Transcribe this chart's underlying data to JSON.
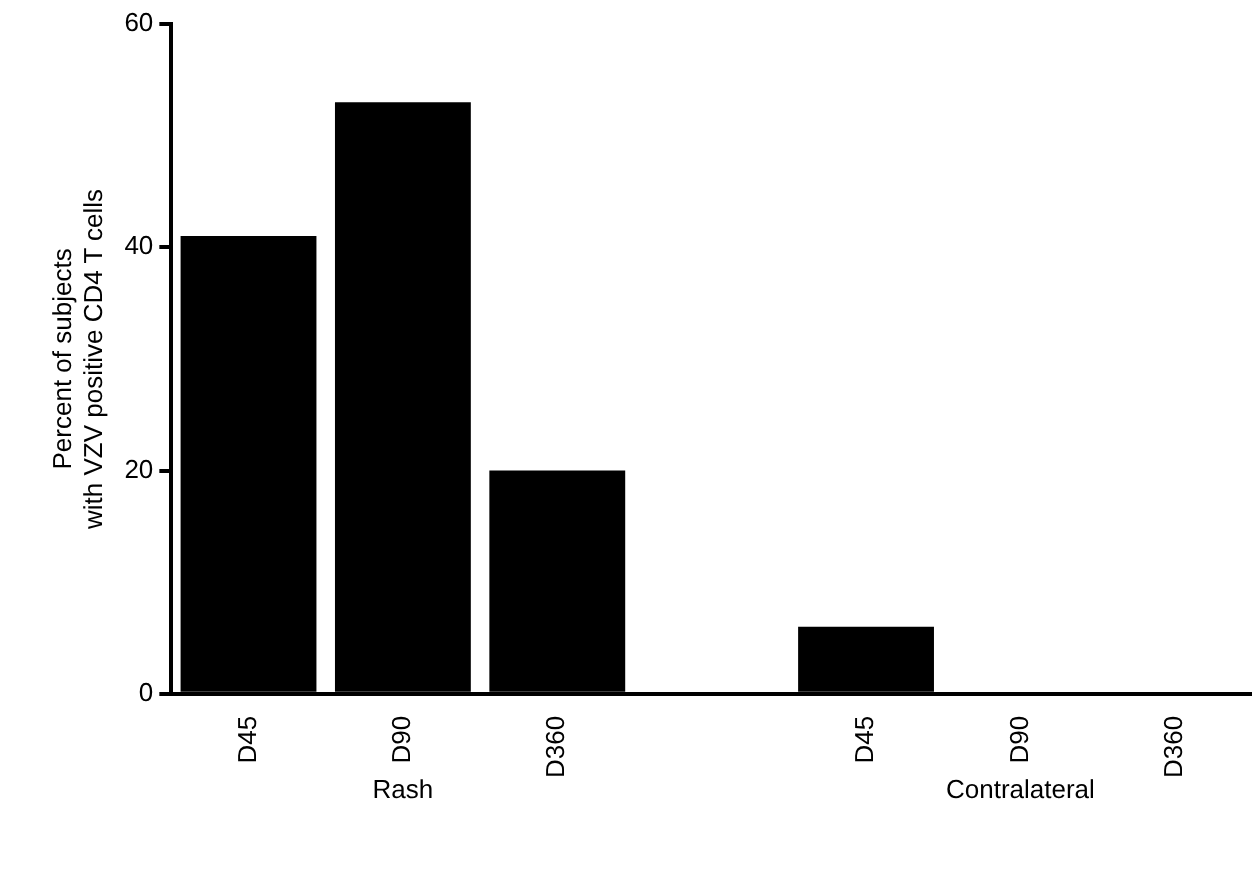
{
  "chart_data": {
    "type": "bar",
    "ylabel": "Percent of subjects\nwith VZV positive CD4 T cells",
    "categories": [
      "D45",
      "D90",
      "D360",
      null,
      "D45",
      "D90",
      "D360"
    ],
    "values": [
      41,
      53,
      20,
      null,
      6,
      0,
      0
    ],
    "color": "#000000",
    "ylim": [
      0,
      60
    ],
    "yticks": [
      0,
      20,
      40,
      60
    ],
    "grid": false,
    "legend": false,
    "annotations": [
      "Rash",
      "Contralateral"
    ]
  }
}
